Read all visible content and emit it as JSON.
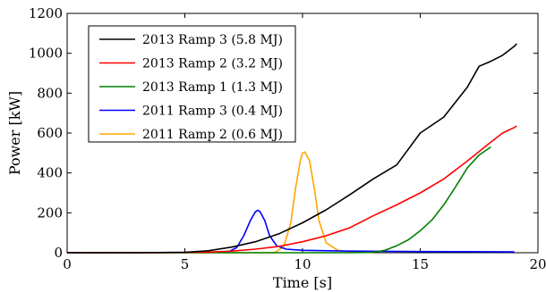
{
  "chart_data": {
    "type": "line",
    "xlabel": "Time [s]",
    "ylabel": "Power [kW]",
    "xlim": [
      0,
      20
    ],
    "ylim": [
      0,
      1200
    ],
    "xticks": [
      0,
      5,
      10,
      15,
      20
    ],
    "yticks": [
      0,
      200,
      400,
      600,
      800,
      1000,
      1200
    ],
    "grid": false,
    "legend_position": "top-left",
    "series": [
      {
        "name": "2013 Ramp 3 (5.8 MJ)",
        "color": "#000000",
        "x": [
          0,
          3,
          5,
          6,
          7,
          8,
          9,
          10,
          11,
          12,
          13,
          14,
          15,
          16,
          17,
          17.5,
          18,
          18.5,
          19,
          19.1
        ],
        "y": [
          0,
          0,
          2,
          10,
          28,
          55,
          95,
          150,
          215,
          290,
          370,
          440,
          600,
          680,
          830,
          935,
          960,
          990,
          1035,
          1048
        ]
      },
      {
        "name": "2013 Ramp 2 (3.2 MJ)",
        "color": "#ff0000",
        "x": [
          0,
          4,
          6,
          7,
          8,
          9,
          10,
          11,
          12,
          13,
          14,
          15,
          16,
          17,
          18,
          18.5,
          19,
          19.1
        ],
        "y": [
          0,
          0,
          3,
          8,
          18,
          32,
          55,
          85,
          125,
          185,
          240,
          300,
          370,
          460,
          555,
          600,
          628,
          635
        ]
      },
      {
        "name": "2013 Ramp 1 (1.3 MJ)",
        "color": "#008000",
        "x": [
          0,
          10,
          12,
          13,
          13.5,
          14,
          14.5,
          15,
          15.5,
          16,
          16.5,
          17,
          17.5,
          18
        ],
        "y": [
          0,
          0,
          0,
          2,
          12,
          35,
          65,
          110,
          165,
          240,
          330,
          425,
          490,
          530
        ]
      },
      {
        "name": "2011 Ramp 3 (0.4 MJ)",
        "color": "#0000ff",
        "x": [
          0,
          6.8,
          7.2,
          7.5,
          7.8,
          8.0,
          8.1,
          8.2,
          8.4,
          8.6,
          8.9,
          9.3,
          10,
          12,
          15,
          18,
          19
        ],
        "y": [
          0,
          2,
          25,
          85,
          165,
          205,
          213,
          205,
          160,
          85,
          35,
          18,
          12,
          8,
          6,
          5,
          4
        ]
      },
      {
        "name": "2011 Ramp 2 (0.6 MJ)",
        "color": "#ffa500",
        "x": [
          0,
          8.8,
          9.2,
          9.5,
          9.7,
          9.9,
          10.0,
          10.1,
          10.3,
          10.5,
          10.7,
          11.0,
          11.5,
          12,
          13
        ],
        "y": [
          0,
          0,
          30,
          150,
          320,
          460,
          500,
          505,
          460,
          320,
          160,
          50,
          12,
          4,
          0
        ]
      }
    ]
  }
}
